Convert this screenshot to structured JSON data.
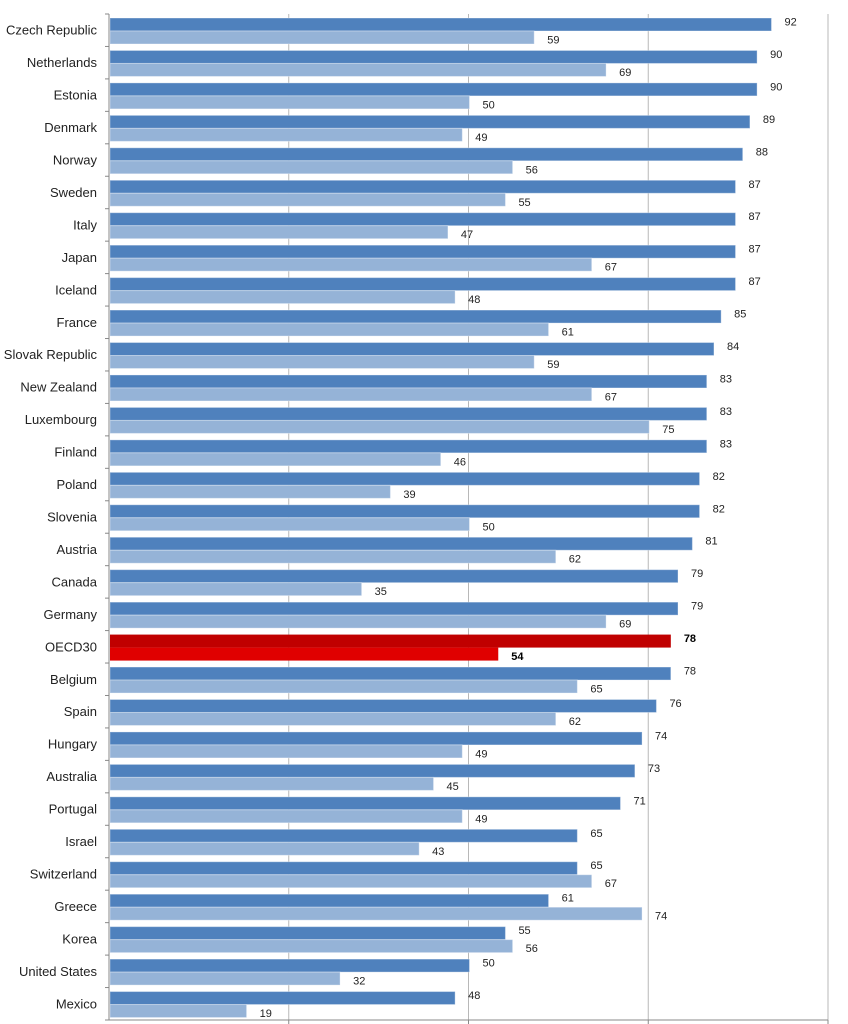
{
  "chart_data": {
    "type": "bar",
    "orientation": "horizontal",
    "title": "",
    "xlabel": "",
    "ylabel": "",
    "xlim": [
      0,
      100
    ],
    "grid": true,
    "legend": "none",
    "categories": [
      "Czech Republic",
      "Netherlands",
      "Estonia",
      "Denmark",
      "Norway",
      "Sweden",
      "Italy",
      "Japan",
      "Iceland",
      "France",
      "Slovak Republic",
      "New Zealand",
      "Luxembourg",
      "Finland",
      "Poland",
      "Slovenia",
      "Austria",
      "Canada",
      "Germany",
      "OECD30",
      "Belgium",
      "Spain",
      "Hungary",
      "Australia",
      "Portugal",
      "Israel",
      "Switzerland",
      "Greece",
      "Korea",
      "United States",
      "Mexico"
    ],
    "highlight_category": "OECD30",
    "series": [
      {
        "name": "series-1",
        "color": "#4f81bd",
        "highlight_color": "#c00000",
        "values": [
          92,
          90,
          90,
          89,
          88,
          87,
          87,
          87,
          87,
          85,
          84,
          83,
          83,
          83,
          82,
          82,
          81,
          79,
          79,
          78,
          78,
          76,
          74,
          73,
          71,
          65,
          65,
          61,
          55,
          50,
          48
        ]
      },
      {
        "name": "series-2",
        "color": "#95b3d7",
        "highlight_color": "#e00000",
        "values": [
          59,
          69,
          50,
          49,
          56,
          55,
          47,
          67,
          48,
          61,
          59,
          67,
          75,
          46,
          39,
          50,
          62,
          35,
          69,
          54,
          65,
          62,
          49,
          45,
          49,
          43,
          67,
          74,
          56,
          32,
          19
        ]
      }
    ]
  }
}
